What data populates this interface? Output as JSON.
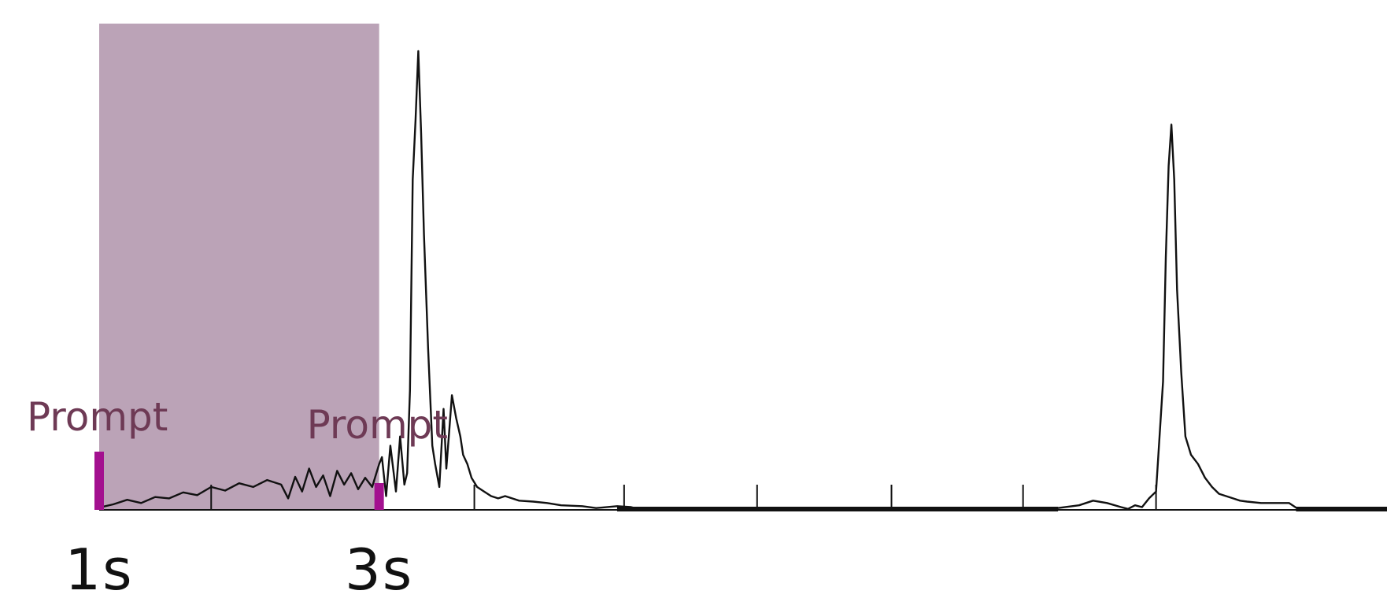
{
  "chart_data": {
    "type": "line",
    "title": "",
    "xlabel": "",
    "ylabel": "",
    "grid": false,
    "xlim": [
      1,
      10.2
    ],
    "ylim": [
      0,
      1
    ],
    "x_tick_labels": [
      {
        "x": 1,
        "label": "1s"
      },
      {
        "x": 3,
        "label": "3s"
      }
    ],
    "x_minor_ticks": [
      1.8,
      3.68,
      4.75,
      5.7,
      6.66,
      7.6,
      8.55
    ],
    "highlight_region": {
      "x_start": 1,
      "x_end": 3,
      "color": "#bba3b7"
    },
    "event_markers": [
      {
        "x": 1,
        "label": "Prompt",
        "color": "#a3108f"
      },
      {
        "x": 3,
        "label": "Prompt",
        "color": "#a3108f"
      }
    ],
    "label_color": "#6e3a55",
    "series": [
      {
        "color": "#111111",
        "points": [
          [
            1.0,
            0.005
          ],
          [
            1.1,
            0.012
          ],
          [
            1.2,
            0.022
          ],
          [
            1.3,
            0.015
          ],
          [
            1.4,
            0.028
          ],
          [
            1.5,
            0.025
          ],
          [
            1.6,
            0.038
          ],
          [
            1.7,
            0.032
          ],
          [
            1.8,
            0.05
          ],
          [
            1.9,
            0.042
          ],
          [
            2.0,
            0.058
          ],
          [
            2.1,
            0.05
          ],
          [
            2.2,
            0.065
          ],
          [
            2.3,
            0.055
          ],
          [
            2.35,
            0.025
          ],
          [
            2.4,
            0.072
          ],
          [
            2.45,
            0.04
          ],
          [
            2.5,
            0.09
          ],
          [
            2.55,
            0.05
          ],
          [
            2.6,
            0.075
          ],
          [
            2.65,
            0.03
          ],
          [
            2.7,
            0.085
          ],
          [
            2.75,
            0.055
          ],
          [
            2.8,
            0.08
          ],
          [
            2.85,
            0.045
          ],
          [
            2.9,
            0.07
          ],
          [
            2.95,
            0.05
          ],
          [
            3.0,
            0.1
          ],
          [
            3.02,
            0.115
          ],
          [
            3.05,
            0.03
          ],
          [
            3.08,
            0.14
          ],
          [
            3.12,
            0.04
          ],
          [
            3.15,
            0.16
          ],
          [
            3.18,
            0.055
          ],
          [
            3.2,
            0.08
          ],
          [
            3.22,
            0.26
          ],
          [
            3.24,
            0.72
          ],
          [
            3.26,
            0.85
          ],
          [
            3.28,
            1.0
          ],
          [
            3.3,
            0.82
          ],
          [
            3.32,
            0.6
          ],
          [
            3.35,
            0.35
          ],
          [
            3.38,
            0.14
          ],
          [
            3.4,
            0.1
          ],
          [
            3.43,
            0.05
          ],
          [
            3.46,
            0.22
          ],
          [
            3.48,
            0.09
          ],
          [
            3.5,
            0.17
          ],
          [
            3.52,
            0.25
          ],
          [
            3.55,
            0.2
          ],
          [
            3.58,
            0.16
          ],
          [
            3.6,
            0.12
          ],
          [
            3.63,
            0.1
          ],
          [
            3.66,
            0.07
          ],
          [
            3.7,
            0.05
          ],
          [
            3.75,
            0.04
          ],
          [
            3.8,
            0.03
          ],
          [
            3.85,
            0.025
          ],
          [
            3.9,
            0.03
          ],
          [
            4.0,
            0.02
          ],
          [
            4.1,
            0.018
          ],
          [
            4.2,
            0.015
          ],
          [
            4.3,
            0.01
          ],
          [
            4.45,
            0.008
          ],
          [
            4.55,
            0.004
          ],
          [
            4.7,
            0.008
          ],
          [
            4.8,
            0.006
          ],
          [
            4.85,
            0.002
          ],
          [
            5.2,
            0.002
          ],
          [
            6.0,
            0.002
          ],
          [
            7.0,
            0.002
          ],
          [
            7.8,
            0.002
          ],
          [
            8.0,
            0.01
          ],
          [
            8.1,
            0.02
          ],
          [
            8.2,
            0.015
          ],
          [
            8.3,
            0.006
          ],
          [
            8.35,
            0.002
          ],
          [
            8.4,
            0.01
          ],
          [
            8.45,
            0.006
          ],
          [
            8.5,
            0.025
          ],
          [
            8.55,
            0.04
          ],
          [
            8.6,
            0.28
          ],
          [
            8.62,
            0.55
          ],
          [
            8.64,
            0.75
          ],
          [
            8.66,
            0.84
          ],
          [
            8.68,
            0.72
          ],
          [
            8.7,
            0.48
          ],
          [
            8.73,
            0.3
          ],
          [
            8.76,
            0.16
          ],
          [
            8.8,
            0.12
          ],
          [
            8.85,
            0.1
          ],
          [
            8.9,
            0.07
          ],
          [
            8.95,
            0.05
          ],
          [
            9.0,
            0.035
          ],
          [
            9.05,
            0.03
          ],
          [
            9.1,
            0.025
          ],
          [
            9.15,
            0.02
          ],
          [
            9.2,
            0.018
          ],
          [
            9.3,
            0.015
          ],
          [
            9.4,
            0.015
          ],
          [
            9.5,
            0.015
          ],
          [
            9.55,
            0.005
          ],
          [
            10.2,
            0.002
          ]
        ]
      }
    ]
  }
}
